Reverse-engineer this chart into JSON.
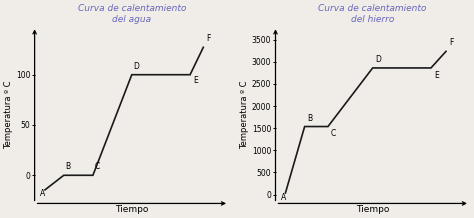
{
  "left_title": "Curva de calentamiento\ndel agua",
  "right_title": "Curva de calentamiento\ndel hierro",
  "left_ylabel": "Temperatura º C",
  "right_ylabel": "Temperatura º C",
  "xlabel": "Tiempo",
  "title_color": "#6666bb",
  "left_points": {
    "x": [
      1,
      2,
      3.5,
      5.5,
      8.5,
      9.2
    ],
    "y": [
      -15,
      0,
      0,
      100,
      100,
      128
    ],
    "labels": [
      "A",
      "B",
      "C",
      "D",
      "E",
      "F"
    ],
    "lx": [
      -0.25,
      0.1,
      0.1,
      0.1,
      0.15,
      0.15
    ],
    "ly": [
      -8,
      4,
      4,
      4,
      -10,
      4
    ]
  },
  "left_ylim": [
    -28,
    148
  ],
  "left_yticks": [
    0,
    50,
    100
  ],
  "left_xlim": [
    0.5,
    10.5
  ],
  "right_points": {
    "x": [
      1,
      2,
      3.2,
      5.5,
      8.5,
      9.3
    ],
    "y": [
      20,
      1538,
      1538,
      2862,
      2862,
      3250
    ],
    "labels": [
      "A",
      "B",
      "C",
      "D",
      "E",
      "F"
    ],
    "lx": [
      -0.2,
      0.12,
      0.12,
      0.12,
      0.15,
      0.15
    ],
    "ly": [
      -180,
      80,
      -250,
      80,
      -280,
      80
    ]
  },
  "right_ylim": [
    -200,
    3800
  ],
  "right_yticks": [
    0,
    500,
    1000,
    1500,
    2000,
    2500,
    3000,
    3500
  ],
  "right_xlim": [
    0.5,
    10.5
  ],
  "line_color": "#1a1a1a",
  "line_width": 1.2,
  "bg_color": "#f0ede8",
  "font_family": "DejaVu Sans",
  "title_fontsize": 6.5,
  "label_fontsize": 5.5,
  "tick_fontsize": 5.5,
  "ylabel_fontsize": 6.0,
  "xlabel_fontsize": 6.5
}
